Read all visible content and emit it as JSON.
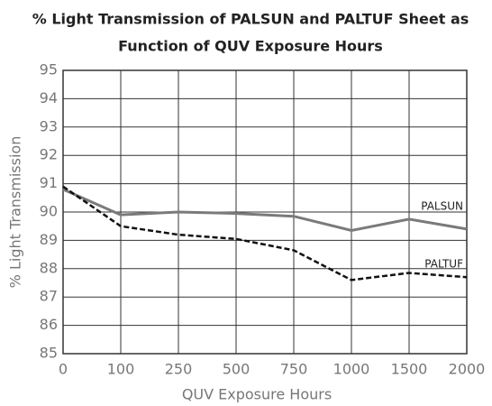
{
  "chart_data": {
    "type": "line",
    "title": [
      "% Light Transmission of PALSUN and PALTUF Sheet as",
      "Function of QUV Exposure Hours"
    ],
    "x_label": "QUV Exposure Hours",
    "y_label": "% Light Transmission",
    "categories": [
      "0",
      "100",
      "250",
      "500",
      "750",
      "1000",
      "1500",
      "2000"
    ],
    "series": [
      {
        "name": "PALSUN",
        "color": "#7a7a7a",
        "dashed": false,
        "values": [
          90.8,
          89.9,
          90.0,
          89.95,
          89.85,
          89.35,
          89.75,
          89.4
        ]
      },
      {
        "name": "PALTUF",
        "color": "#111111",
        "dashed": true,
        "values": [
          90.9,
          89.5,
          89.2,
          89.05,
          88.65,
          87.6,
          87.85,
          87.7
        ]
      }
    ],
    "ylim": [
      85,
      95
    ],
    "yticks": [
      85,
      86,
      87,
      88,
      89,
      90,
      91,
      92,
      93,
      94,
      95
    ],
    "grid": true
  }
}
